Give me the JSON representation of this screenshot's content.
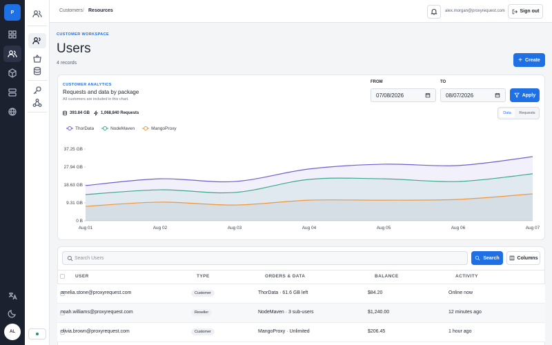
{
  "logo": "P",
  "avatar": "AL",
  "breadcrumb": [
    "Customers",
    "Resources"
  ],
  "user_email": "alex.morgan@proxyrequest.com",
  "sign_out": "Sign out",
  "page": {
    "eyebrow": "CUSTOMER WORKSPACE",
    "title": "Users",
    "subtitle": "4 records",
    "create": "Create"
  },
  "analytics": {
    "eyebrow": "CUSTOMER ANALYTICS",
    "title": "Requests and data by package",
    "note": "All customers are included in this chart.",
    "from_label": "FROM",
    "from": "07/08/2026",
    "to_label": "TO",
    "to": "08/07/2026",
    "apply": "Apply",
    "total_data": "393.84 GB",
    "total_requests": "1,068,840 Requests",
    "tabs": [
      "Data",
      "Requests"
    ]
  },
  "chart_data": {
    "type": "line",
    "categories": [
      "Aug 01",
      "Aug 02",
      "Aug 03",
      "Aug 04",
      "Aug 05",
      "Aug 06",
      "Aug 07"
    ],
    "series": [
      {
        "name": "ThorData",
        "color": "#6c5dd3",
        "values": [
          18.3,
          21.8,
          20.4,
          26.9,
          29.4,
          28.7,
          33.3
        ]
      },
      {
        "name": "NodeMaven",
        "color": "#3aa88a",
        "values": [
          13.6,
          16.1,
          14.7,
          21.5,
          21.8,
          20.4,
          24.4
        ]
      },
      {
        "name": "MangoProxy",
        "color": "#f0963c",
        "values": [
          7.5,
          9.7,
          8.2,
          10.7,
          10.7,
          11.1,
          14.0
        ]
      }
    ],
    "ylim": [
      0,
      37.25
    ],
    "yticks": [
      {
        "value": 0,
        "label": "0 B"
      },
      {
        "value": 9.31,
        "label": "9.31 GB"
      },
      {
        "value": 18.63,
        "label": "18.63 GB"
      },
      {
        "value": 27.94,
        "label": "27.94 GB"
      },
      {
        "value": 37.25,
        "label": "37.25 GB"
      }
    ],
    "area": true,
    "legend": "top-left"
  },
  "table": {
    "search_placeholder": "Search Users",
    "search": "Search",
    "columns": "Columns",
    "headers": [
      "USER",
      "TYPE",
      "ORDERS & DATA",
      "BALANCE",
      "ACTIVITY"
    ],
    "rows": [
      [
        "amelia.stone@proxyrequest.com",
        "Customer",
        "ThorData · 61.6 GB left",
        "$84.20",
        "Online now"
      ],
      [
        "noah.williams@proxyrequest.com",
        "Reseller",
        "NodeMaven · 3 sub-users",
        "$1,240.00",
        "12 minutes ago"
      ],
      [
        "olivia.brown@proxyrequest.com",
        "Customer",
        "MangoProxy · Unlimited",
        "$206.45",
        "1 hour ago"
      ]
    ]
  }
}
